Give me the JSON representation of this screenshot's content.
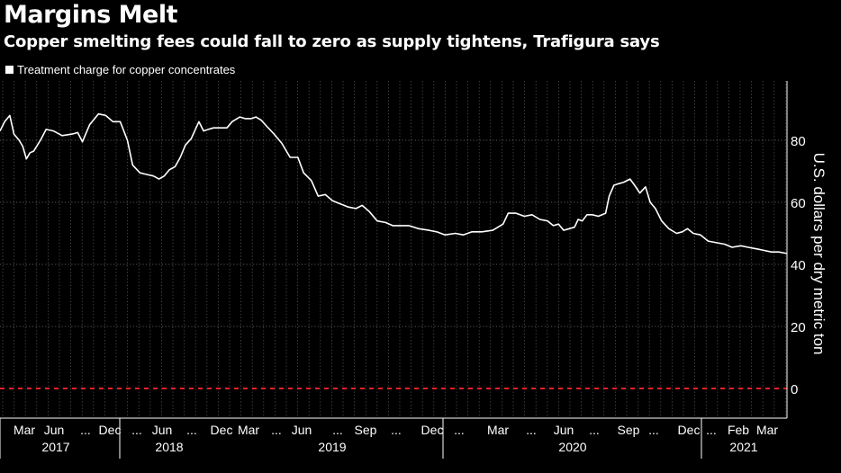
{
  "header": {
    "title": "Margins Melt",
    "subtitle": "Copper smelting fees could fall to zero as supply tightens, Trafigura says"
  },
  "legend": {
    "label": "Treatment charge for copper concentrates"
  },
  "colors": {
    "background": "#000000",
    "line": "#ffffff",
    "grid": "#8a8a8a",
    "zero_line": "#e8202a"
  },
  "chart_data": {
    "type": "line",
    "title": "Margins Melt",
    "ylabel": "U.S. dollars per dry metric ton",
    "ylim": [
      -10,
      95
    ],
    "yticks": [
      0,
      20,
      40,
      60,
      80
    ],
    "reference_line": {
      "y": 0,
      "style": "dashed",
      "color": "#e8202a"
    },
    "grid": "vertical dotted lines weekly, horizontal dotted lines at ticks",
    "x_range": [
      "2017-02-01",
      "2021-03-31"
    ],
    "month_ticks": [
      "Mar",
      "Jun",
      "...",
      "Dec",
      "...",
      "Jun",
      "...",
      "Dec",
      "Mar",
      "...",
      "Jun",
      "...",
      "Sep",
      "...",
      "Dec",
      "...",
      "Mar",
      "...",
      "Jun",
      "...",
      "Sep",
      "...",
      "Dec",
      "...",
      "Feb",
      "Mar"
    ],
    "year_labels": [
      "2017",
      "2018",
      "2019",
      "2020",
      "2021"
    ],
    "series": [
      {
        "name": "Treatment charge for copper concentrates",
        "points": [
          [
            "2017-02-01",
            83
          ],
          [
            "2017-02-10",
            86
          ],
          [
            "2017-02-20",
            88
          ],
          [
            "2017-02-28",
            82
          ],
          [
            "2017-03-10",
            80
          ],
          [
            "2017-03-17",
            78
          ],
          [
            "2017-03-24",
            74
          ],
          [
            "2017-03-31",
            76
          ],
          [
            "2017-04-07",
            76.5
          ],
          [
            "2017-04-20",
            80
          ],
          [
            "2017-05-01",
            83.5
          ],
          [
            "2017-05-15",
            83
          ],
          [
            "2017-06-01",
            81.5
          ],
          [
            "2017-06-20",
            82
          ],
          [
            "2017-07-01",
            82.5
          ],
          [
            "2017-07-10",
            79.5
          ],
          [
            "2017-07-24",
            85
          ],
          [
            "2017-08-10",
            88.5
          ],
          [
            "2017-08-24",
            88
          ],
          [
            "2017-09-07",
            86
          ],
          [
            "2017-09-21",
            86
          ],
          [
            "2017-10-05",
            80
          ],
          [
            "2017-10-15",
            72
          ],
          [
            "2017-10-29",
            69.5
          ],
          [
            "2017-11-10",
            69
          ],
          [
            "2017-11-24",
            68.5
          ],
          [
            "2017-12-05",
            67.5
          ],
          [
            "2017-12-15",
            68.5
          ],
          [
            "2017-12-25",
            70.5
          ],
          [
            "2018-01-05",
            71.5
          ],
          [
            "2018-01-15",
            74.5
          ],
          [
            "2018-01-25",
            78.5
          ],
          [
            "2018-02-05",
            80.5
          ],
          [
            "2018-02-20",
            86
          ],
          [
            "2018-03-01",
            83
          ],
          [
            "2018-03-10",
            83.5
          ],
          [
            "2018-03-20",
            84
          ],
          [
            "2018-04-01",
            84
          ],
          [
            "2018-04-15",
            84
          ],
          [
            "2018-04-25",
            86
          ],
          [
            "2018-05-10",
            87.5
          ],
          [
            "2018-05-20",
            87
          ],
          [
            "2018-06-01",
            87
          ],
          [
            "2018-06-10",
            87.5
          ],
          [
            "2018-06-20",
            86.5
          ],
          [
            "2018-07-01",
            84.5
          ],
          [
            "2018-07-15",
            82
          ],
          [
            "2018-07-30",
            79
          ],
          [
            "2018-08-15",
            74.5
          ],
          [
            "2018-08-30",
            74.5
          ],
          [
            "2018-09-10",
            69.5
          ],
          [
            "2018-09-25",
            67
          ],
          [
            "2018-10-08",
            62
          ],
          [
            "2018-10-22",
            62.5
          ],
          [
            "2018-11-05",
            60.5
          ],
          [
            "2018-11-20",
            59.5
          ],
          [
            "2018-12-05",
            58.5
          ],
          [
            "2018-12-20",
            58
          ],
          [
            "2019-01-01",
            59
          ],
          [
            "2019-01-15",
            57
          ],
          [
            "2019-01-30",
            54
          ],
          [
            "2019-02-15",
            53.5
          ],
          [
            "2019-03-01",
            52.5
          ],
          [
            "2019-03-15",
            52.5
          ],
          [
            "2019-04-01",
            52.5
          ],
          [
            "2019-04-20",
            51.5
          ],
          [
            "2019-05-10",
            51
          ],
          [
            "2019-05-25",
            50.5
          ],
          [
            "2019-06-10",
            49.5
          ],
          [
            "2019-06-30",
            50
          ],
          [
            "2019-07-15",
            49.5
          ],
          [
            "2019-08-01",
            50.5
          ],
          [
            "2019-08-20",
            50.5
          ],
          [
            "2019-09-10",
            51
          ],
          [
            "2019-09-30",
            53
          ],
          [
            "2019-10-10",
            56.5
          ],
          [
            "2019-10-25",
            56.5
          ],
          [
            "2019-11-10",
            55.5
          ],
          [
            "2019-11-25",
            56
          ],
          [
            "2019-12-10",
            54.5
          ],
          [
            "2019-12-25",
            54
          ],
          [
            "2020-01-05",
            52.5
          ],
          [
            "2020-01-15",
            53
          ],
          [
            "2020-01-25",
            51
          ],
          [
            "2020-02-05",
            51.5
          ],
          [
            "2020-02-15",
            52
          ],
          [
            "2020-02-22",
            54.5
          ],
          [
            "2020-03-01",
            54
          ],
          [
            "2020-03-10",
            56
          ],
          [
            "2020-03-20",
            56
          ],
          [
            "2020-04-01",
            55.5
          ],
          [
            "2020-04-15",
            56.5
          ],
          [
            "2020-04-22",
            62
          ],
          [
            "2020-05-01",
            65.5
          ],
          [
            "2020-05-10",
            66
          ],
          [
            "2020-05-20",
            66.5
          ],
          [
            "2020-06-01",
            67.5
          ],
          [
            "2020-06-10",
            65.5
          ],
          [
            "2020-06-20",
            63
          ],
          [
            "2020-07-01",
            65
          ],
          [
            "2020-07-10",
            60
          ],
          [
            "2020-07-20",
            58
          ],
          [
            "2020-08-01",
            54
          ],
          [
            "2020-08-15",
            51.5
          ],
          [
            "2020-08-30",
            50
          ],
          [
            "2020-09-10",
            50.5
          ],
          [
            "2020-09-20",
            51.5
          ],
          [
            "2020-10-01",
            50
          ],
          [
            "2020-10-15",
            49.5
          ],
          [
            "2020-10-30",
            47.5
          ],
          [
            "2020-11-15",
            47
          ],
          [
            "2020-12-01",
            46.5
          ],
          [
            "2020-12-15",
            45.5
          ],
          [
            "2021-01-01",
            46
          ],
          [
            "2021-01-15",
            45.5
          ],
          [
            "2021-02-01",
            45
          ],
          [
            "2021-02-15",
            44.5
          ],
          [
            "2021-03-01",
            44
          ],
          [
            "2021-03-15",
            44
          ],
          [
            "2021-03-31",
            43.5
          ]
        ]
      }
    ]
  }
}
